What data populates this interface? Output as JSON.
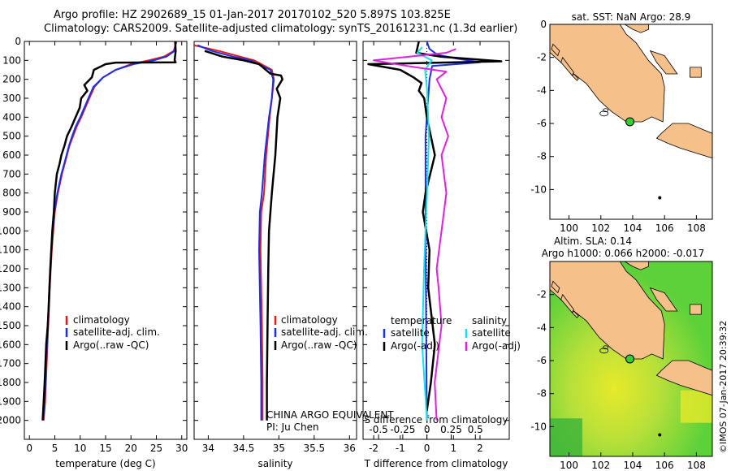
{
  "header": {
    "line1": "Argo profile: HZ 2902689_15 01-Jan-2017 20170102_520 5.897S 103.825E",
    "line2": "Climatology: CARS2009. Satellite-adjusted climatology: synTS_20161231.nc (1.3d earlier)"
  },
  "colors": {
    "climatology": "#e81818",
    "satellite": "#1a2fe6",
    "argo": "#000000",
    "satellite_diff": "#18e0e8",
    "argo_diff": "#e020e0",
    "land": "#f5c08a",
    "sst_sea": "#ffffff",
    "sla_green": "#5cd13a",
    "sla_yellow": "#e6ea2a",
    "float_marker": "#30d030"
  },
  "chart_data": [
    {
      "type": "line",
      "panel": "temperature",
      "xlabel": "temperature (deg C)",
      "xlim": [
        -1,
        31
      ],
      "ylim": [
        2100,
        0
      ],
      "xticks": [
        0,
        5,
        10,
        15,
        20,
        25,
        30
      ],
      "yticks": [
        0,
        100,
        200,
        300,
        400,
        500,
        600,
        700,
        800,
        900,
        1000,
        1100,
        1200,
        1300,
        1400,
        1500,
        1600,
        1700,
        1800,
        1900,
        2000
      ],
      "legend": [
        "climatology",
        "satellite-adj. clim.",
        "Argo(..raw -QC)"
      ],
      "series": [
        {
          "name": "climatology",
          "color_key": "climatology",
          "x": [
            29,
            28.4,
            26.5,
            23.5,
            20,
            17,
            14.5,
            12.8,
            11.8,
            11,
            10.2,
            9.3,
            8.6,
            7.9,
            7.4,
            6.9,
            6.4,
            6,
            5.6,
            5.3,
            5,
            4.7,
            4.4,
            4,
            3.7,
            3.4,
            3.1,
            2.8
          ],
          "y": [
            0,
            50,
            80,
            100,
            120,
            150,
            190,
            240,
            300,
            350,
            400,
            450,
            500,
            550,
            600,
            650,
            700,
            750,
            800,
            850,
            900,
            1000,
            1100,
            1300,
            1500,
            1700,
            1900,
            2000
          ]
        },
        {
          "name": "satellite-adj. clim.",
          "color_key": "satellite",
          "x": [
            28.9,
            28.6,
            27,
            24.5,
            20.5,
            17,
            14.5,
            12.6,
            11.6,
            10.8,
            10,
            9.1,
            8.4,
            7.8,
            7.3,
            6.8,
            6.3,
            5.9,
            5.5,
            5.2,
            4.9,
            4.6,
            4.3,
            3.9,
            3.6,
            3.3,
            3,
            2.7
          ],
          "y": [
            0,
            50,
            80,
            100,
            120,
            150,
            190,
            240,
            300,
            350,
            400,
            450,
            500,
            550,
            600,
            650,
            700,
            750,
            800,
            850,
            900,
            1000,
            1100,
            1300,
            1500,
            1700,
            1900,
            2000
          ]
        },
        {
          "name": "Argo(..raw -QC)",
          "color_key": "argo",
          "x": [
            28.7,
            28.8,
            28.6,
            28.8,
            17,
            15,
            12.7,
            12.3,
            10.8,
            11.4,
            10.2,
            9.9,
            9.1,
            8.3,
            7.4,
            6.9,
            6.3,
            5.9,
            5.4,
            5,
            4.8,
            4.5,
            4.1,
            3.8,
            3.6,
            3.3,
            3,
            2.8,
            2.6
          ],
          "y": [
            0,
            50,
            100,
            110,
            112,
            120,
            150,
            190,
            230,
            260,
            300,
            350,
            400,
            450,
            500,
            550,
            600,
            650,
            700,
            800,
            900,
            1000,
            1200,
            1400,
            1500,
            1600,
            1800,
            1900,
            2000
          ]
        }
      ]
    },
    {
      "type": "line",
      "panel": "salinity",
      "xlabel": "salinity",
      "xlim": [
        33.8,
        36.1
      ],
      "ylim": [
        2100,
        0
      ],
      "xticks": [
        34,
        34.5,
        35,
        35.5,
        36
      ],
      "legend": [
        "climatology",
        "satellite-adj. clim.",
        "Argo(..raw -QC)"
      ],
      "annotations": [
        "CHINA ARGO EQUIVALENT",
        "PI: Ju Chen"
      ],
      "series": [
        {
          "name": "climatology",
          "color_key": "climatology",
          "x": [
            33.8,
            34.15,
            34.45,
            34.65,
            34.9,
            34.93,
            34.9,
            34.87,
            34.82,
            34.79,
            34.75,
            34.74,
            34.76,
            34.77,
            34.77
          ],
          "y": [
            20,
            50,
            80,
            100,
            150,
            200,
            300,
            400,
            600,
            800,
            900,
            1100,
            1500,
            1800,
            2000
          ]
        },
        {
          "name": "satellite-adj. clim.",
          "color_key": "satellite",
          "x": [
            33.85,
            34.05,
            34.35,
            34.6,
            34.88,
            34.92,
            34.9,
            34.86,
            34.8,
            34.76,
            34.73,
            34.72,
            34.74,
            34.75,
            34.75
          ],
          "y": [
            20,
            50,
            80,
            100,
            150,
            200,
            300,
            400,
            600,
            800,
            900,
            1100,
            1500,
            1800,
            2000
          ]
        },
        {
          "name": "Argo(..raw -QC)",
          "color_key": "argo",
          "x": [
            33.95,
            34.2,
            34.5,
            34.72,
            34.88,
            35.03,
            35.05,
            34.97,
            35.02,
            34.98,
            34.95,
            34.9,
            34.86,
            34.85,
            34.84,
            34.83,
            34.83
          ],
          "y": [
            50,
            80,
            100,
            120,
            170,
            180,
            200,
            250,
            300,
            400,
            600,
            800,
            1000,
            1200,
            1500,
            1800,
            2000
          ]
        }
      ]
    },
    {
      "type": "line",
      "panel": "difference",
      "xlabel_top": "S difference from climatology",
      "xlabel_bottom": "T difference from climatology",
      "xlim_T": [
        -2.4,
        3.1
      ],
      "xlim_S": [
        -0.66,
        0.85
      ],
      "ylim": [
        2100,
        0
      ],
      "xticks_T": [
        -2,
        -1,
        0,
        1,
        2
      ],
      "xticks_S": [
        -0.5,
        -0.25,
        0,
        0.25,
        0.5
      ],
      "legend_temperature": [
        "temperature",
        "satellite",
        "Argo(-adj)"
      ],
      "legend_salinity": [
        "salinity",
        "satellite",
        "Argo(-adj)"
      ],
      "series": [
        {
          "name": "temperature satellite",
          "color_key": "satellite",
          "axis": "T",
          "x": [
            0,
            0.1,
            0.4,
            1.1,
            2,
            0.2,
            0.1,
            -0.05,
            -0.05,
            0
          ],
          "y": [
            0,
            40,
            70,
            90,
            110,
            130,
            200,
            500,
            1000,
            2000
          ]
        },
        {
          "name": "temperature Argo(-adj)",
          "color_key": "argo",
          "axis": "T",
          "x": [
            -0.3,
            -0.4,
            0.5,
            2.8,
            -2.2,
            -1,
            -0.5,
            -0.2,
            -0.3,
            -0.1,
            0,
            0.15,
            0.3,
            -0.05,
            -0.15,
            0.1,
            0.05,
            0.3,
            0.15,
            0
          ],
          "y": [
            0,
            60,
            80,
            105,
            120,
            150,
            190,
            220,
            260,
            300,
            400,
            500,
            600,
            800,
            900,
            1100,
            1300,
            1600,
            1800,
            1950
          ]
        },
        {
          "name": "salinity satellite",
          "color_key": "satellite_diff",
          "axis": "S",
          "x": [
            -0.05,
            -0.1,
            0.05,
            -0.02,
            0,
            0.02,
            0,
            -0.03,
            -0.05,
            0
          ],
          "y": [
            30,
            60,
            100,
            150,
            250,
            500,
            800,
            1200,
            1600,
            2000
          ]
        },
        {
          "name": "salinity Argo(-adj)",
          "color_key": "argo_diff",
          "axis": "S",
          "x": [
            0.3,
            0.2,
            -0.55,
            -0.2,
            0.2,
            0.1,
            0.2,
            0.15,
            0.22,
            0.15,
            0.2,
            0.15,
            0.1,
            0.12,
            0.15,
            0.08,
            0.1
          ],
          "y": [
            40,
            60,
            100,
            130,
            160,
            200,
            300,
            400,
            500,
            600,
            800,
            1000,
            1200,
            1300,
            1500,
            1800,
            2000
          ]
        }
      ]
    },
    {
      "type": "map",
      "panel": "sst_map",
      "title": "sat. SST: NaN Argo: 28.9",
      "xlim": [
        98.8,
        109
      ],
      "ylim": [
        -11.8,
        0
      ],
      "xticks": [
        100,
        102,
        104,
        106,
        108
      ],
      "yticks": [
        0,
        -2,
        -4,
        -6,
        -8,
        -10
      ],
      "float_position": {
        "lon": 103.825,
        "lat": -5.897
      }
    },
    {
      "type": "map",
      "panel": "sla_map",
      "title_line1": "Altim. SLA: 0.14",
      "title_line2": "Argo h1000: 0.066 h2000: -0.017",
      "xlim": [
        98.8,
        109
      ],
      "ylim": [
        -11.8,
        0
      ],
      "xticks": [
        100,
        102,
        104,
        106,
        108
      ],
      "yticks": [
        -2,
        -4,
        -6,
        -8,
        -10
      ],
      "float_position": {
        "lon": 103.825,
        "lat": -5.897
      }
    }
  ],
  "footer": {
    "stamp": "©IMOS 07-Jan-2017 20:39:32"
  }
}
